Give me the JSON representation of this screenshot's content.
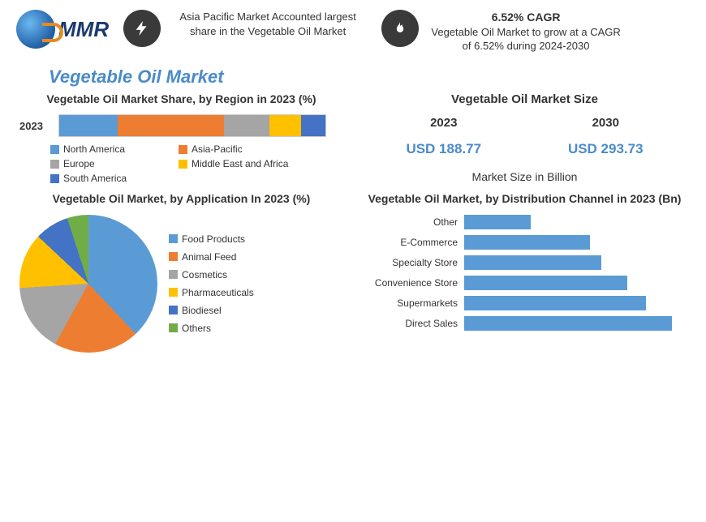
{
  "header": {
    "logo_text": "MMR",
    "stat1": {
      "icon": "bolt-icon",
      "text": "Asia Pacific Market Accounted largest share in the Vegetable Oil Market"
    },
    "stat2": {
      "icon": "flame-icon",
      "title": "6.52% CAGR",
      "text": "Vegetable Oil Market to grow at a CAGR of 6.52% during 2024-2030"
    }
  },
  "main_title": "Vegetable Oil Market",
  "region_chart": {
    "type": "stacked-bar-100",
    "title": "Vegetable Oil Market Share, by Region in 2023 (%)",
    "year_label": "2023",
    "segments": [
      {
        "label": "North America",
        "value": 22,
        "color": "#5b9bd5"
      },
      {
        "label": "Asia-Pacific",
        "value": 40,
        "color": "#ed7d31"
      },
      {
        "label": "Europe",
        "value": 17,
        "color": "#a5a5a5"
      },
      {
        "label": "Middle East and Africa",
        "value": 12,
        "color": "#ffc000"
      },
      {
        "label": "South America",
        "value": 9,
        "color": "#4472c4"
      }
    ],
    "title_fontsize": 14,
    "label_fontsize": 12,
    "background_color": "#ffffff"
  },
  "size_panel": {
    "title": "Vegetable Oil Market Size",
    "years": [
      "2023",
      "2030"
    ],
    "values": [
      "USD 188.77",
      "USD 293.73"
    ],
    "value_color": "#4a8bc9",
    "note": "Market Size in Billion",
    "title_fontsize": 15
  },
  "application_chart": {
    "type": "pie",
    "title": "Vegetable Oil Market, by Application In 2023 (%)",
    "slices": [
      {
        "label": "Food Products",
        "value": 38,
        "color": "#5b9bd5"
      },
      {
        "label": "Animal Feed",
        "value": 20,
        "color": "#ed7d31"
      },
      {
        "label": "Cosmetics",
        "value": 16,
        "color": "#a5a5a5"
      },
      {
        "label": "Pharmaceuticals",
        "value": 13,
        "color": "#ffc000"
      },
      {
        "label": "Biodiesel",
        "value": 8,
        "color": "#4472c4"
      },
      {
        "label": "Others",
        "value": 5,
        "color": "#70ad47"
      }
    ],
    "title_fontsize": 14,
    "label_fontsize": 12
  },
  "channel_chart": {
    "type": "bar-horizontal",
    "title": "Vegetable Oil Market, by Distribution Channel in 2023 (Bn)",
    "max": 60,
    "bar_color": "#5b9bd5",
    "bars": [
      {
        "label": "Other",
        "value": 18
      },
      {
        "label": "E-Commerce",
        "value": 34
      },
      {
        "label": "Specialty Store",
        "value": 37
      },
      {
        "label": "Convenience Store",
        "value": 44
      },
      {
        "label": "Supermarkets",
        "value": 49
      },
      {
        "label": "Direct Sales",
        "value": 56
      }
    ],
    "title_fontsize": 14,
    "label_fontsize": 12
  }
}
